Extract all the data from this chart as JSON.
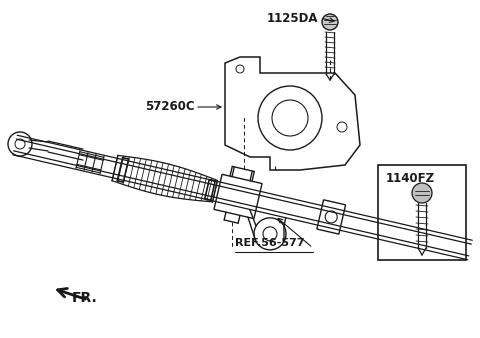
{
  "bg_color": "#ffffff",
  "line_color": "#1a1a1a",
  "fig_width": 4.8,
  "fig_height": 3.38,
  "dpi": 100,
  "label_1125DA": "1125DA",
  "label_57260C": "57260C",
  "label_ref": "REF.56-577",
  "label_1140FZ": "1140FZ",
  "label_fr": "FR."
}
